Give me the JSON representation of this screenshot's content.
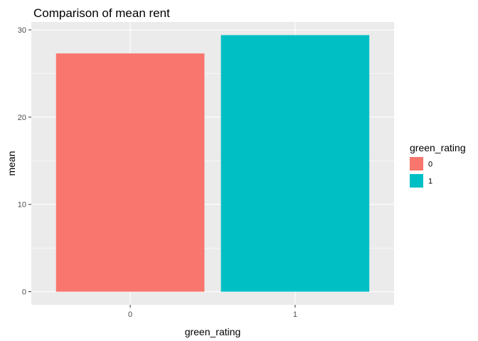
{
  "chart_data": {
    "type": "bar",
    "title": "Comparison of mean rent",
    "xlabel": "green_rating",
    "ylabel": "mean",
    "categories": [
      "0",
      "1"
    ],
    "values": [
      27.3,
      29.4
    ],
    "colors": [
      "#F8766D",
      "#00BFC4"
    ],
    "ylim": [
      -1.5,
      30.9
    ],
    "yticks": [
      0,
      10,
      20,
      30
    ],
    "grid": true,
    "background": "#EBEBEB",
    "legend": {
      "title": "green_rating",
      "placement": "right",
      "items": [
        {
          "label": "0",
          "color": "#F8766D"
        },
        {
          "label": "1",
          "color": "#00BFC4"
        }
      ]
    }
  }
}
